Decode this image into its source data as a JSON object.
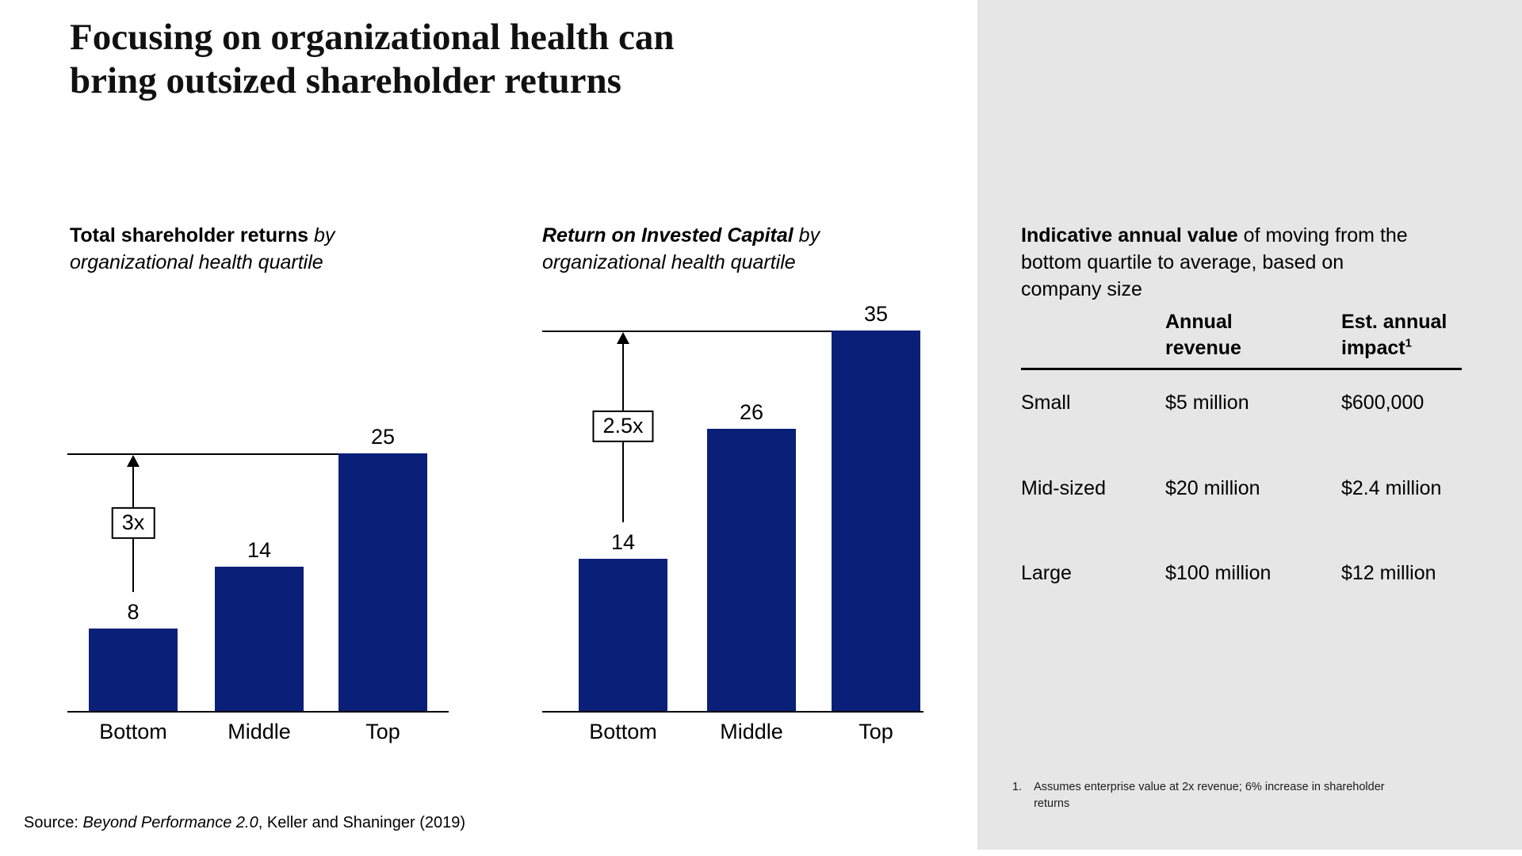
{
  "title": "Focusing on organizational health can\nbring outsized shareholder returns",
  "colors": {
    "bar_color": "#0a2078",
    "panel_bg": "#e6e6e6",
    "line_color": "#000000"
  },
  "chart_data": [
    {
      "type": "bar",
      "title": "Total shareholder returns by organizational health quartile",
      "title_bold": "Total shareholder returns",
      "title_rest": " by\norganizational health quartile",
      "categories": [
        "Bottom",
        "Middle",
        "Top"
      ],
      "values": [
        8,
        14,
        25
      ],
      "multiplier_label": "3x",
      "reference_value": 25,
      "xlabel": "",
      "ylabel": "",
      "ylim": [
        0,
        25
      ],
      "grid": false,
      "legend": "none"
    },
    {
      "type": "bar",
      "title": "Return on Invested Capital by organizational health quartile",
      "title_bold": "Return on Invested Capital",
      "title_rest": " by\norganizational health quartile",
      "categories": [
        "Bottom",
        "Middle",
        "Top"
      ],
      "values": [
        14,
        26,
        35
      ],
      "multiplier_label": "2.5x",
      "reference_value": 35,
      "xlabel": "",
      "ylabel": "",
      "ylim": [
        0,
        35
      ],
      "grid": false,
      "legend": "none"
    }
  ],
  "side_panel": {
    "heading_bold": "Indicative annual value",
    "heading_rest": " of moving from the\nbottom quartile to average, based on\ncompany size",
    "table": {
      "revenue_header": "Annual\nrevenue",
      "impact_header": "Est. annual\nimpact",
      "impact_header_sup": "1",
      "rows": [
        {
          "label": "Small",
          "revenue": "$5 million",
          "impact": "$600,000"
        },
        {
          "label": "Mid-sized",
          "revenue": "$20 million",
          "impact": "$2.4 million"
        },
        {
          "label": "Large",
          "revenue": "$100 million",
          "impact": "$12 million"
        }
      ]
    },
    "footnote_number": "1.",
    "footnote_text": "Assumes enterprise value at 2x revenue; 6% increase in shareholder\nreturns"
  },
  "source": {
    "prefix": "Source: ",
    "italic": "Beyond Performance 2.0",
    "suffix": ", Keller and Shaninger (2019)"
  }
}
